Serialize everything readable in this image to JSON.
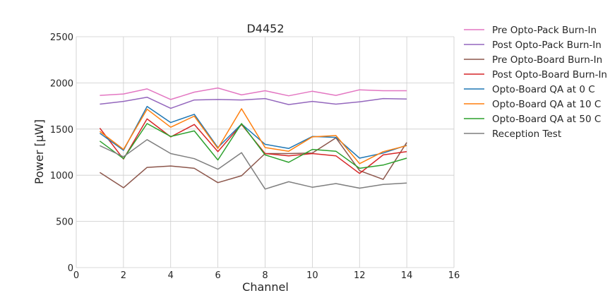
{
  "chart_data": {
    "type": "line",
    "title": "D4452",
    "xlabel": "Channel",
    "ylabel": "Power [μW]",
    "xlim": [
      0,
      16
    ],
    "ylim": [
      0,
      2500
    ],
    "xticks": [
      0,
      2,
      4,
      6,
      8,
      10,
      12,
      14,
      16
    ],
    "yticks": [
      0,
      500,
      1000,
      1500,
      2000,
      2500
    ],
    "grid": true,
    "legend_position": "outside-right-top",
    "x": [
      1,
      2,
      3,
      4,
      5,
      6,
      7,
      8,
      9,
      10,
      11,
      12,
      13,
      14
    ],
    "series": [
      {
        "name": "Pre Opto-Pack Burn-In",
        "color": "#e377c2",
        "values": [
          1865,
          1880,
          1935,
          1820,
          1900,
          1945,
          1870,
          1915,
          1860,
          1910,
          1865,
          1925,
          1915,
          1915
        ]
      },
      {
        "name": "Post Opto-Pack Burn-In",
        "color": "#9467bd",
        "values": [
          1770,
          1800,
          1845,
          1725,
          1815,
          1820,
          1815,
          1830,
          1765,
          1800,
          1770,
          1795,
          1830,
          1825
        ]
      },
      {
        "name": "Pre Opto-Board Burn-In",
        "color": "#8c564b",
        "values": [
          1030,
          865,
          1085,
          1100,
          1075,
          920,
          995,
          1235,
          1235,
          1240,
          1405,
          1050,
          955,
          1355
        ]
      },
      {
        "name": "Post Opto-Board Burn-In",
        "color": "#d62728",
        "values": [
          1510,
          1175,
          1610,
          1415,
          1550,
          1255,
          1550,
          1235,
          1210,
          1235,
          1210,
          1020,
          1220,
          1255
        ]
      },
      {
        "name": "Opto-Board QA at 0 C",
        "color": "#1f77b4",
        "values": [
          1455,
          1270,
          1745,
          1570,
          1660,
          1300,
          1555,
          1335,
          1290,
          1420,
          1410,
          1185,
          1240,
          1325
        ]
      },
      {
        "name": "Opto-Board QA at 10 C",
        "color": "#ff7f0e",
        "values": [
          1475,
          1280,
          1715,
          1520,
          1640,
          1290,
          1720,
          1300,
          1260,
          1415,
          1430,
          1125,
          1255,
          1320
        ]
      },
      {
        "name": "Opto-Board QA at 50 C",
        "color": "#2ca02c",
        "values": [
          1370,
          1180,
          1560,
          1420,
          1480,
          1165,
          1560,
          1220,
          1140,
          1280,
          1260,
          1075,
          1110,
          1185
        ]
      },
      {
        "name": "Reception Test",
        "color": "#7f7f7f",
        "values": [
          1320,
          1200,
          1385,
          1235,
          1180,
          1065,
          1245,
          850,
          930,
          870,
          910,
          860,
          900,
          915
        ]
      }
    ]
  }
}
